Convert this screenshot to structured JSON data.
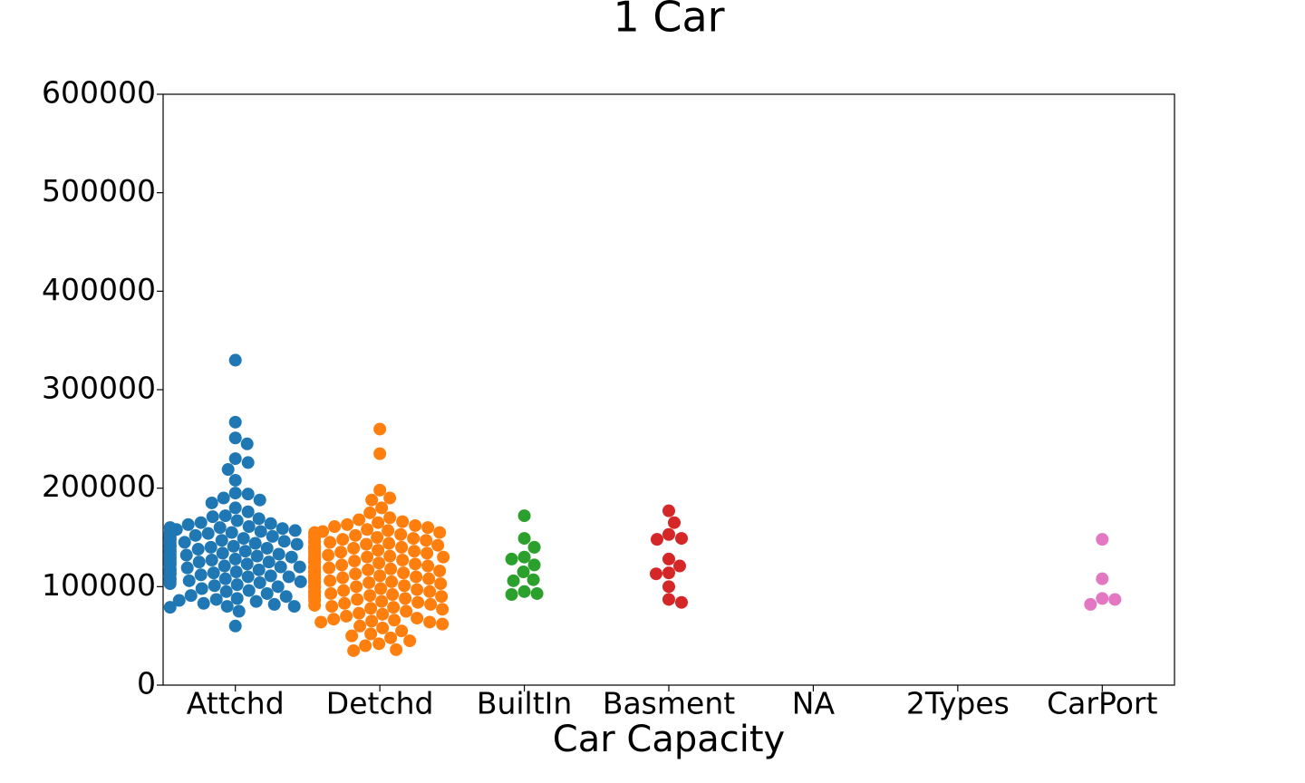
{
  "chart_data": {
    "type": "swarm",
    "title": "1 Car",
    "x_label": "Car Capacity",
    "categories": [
      "Attchd",
      "Detchd",
      "BuiltIn",
      "Basment",
      "NA",
      "2Types",
      "CarPort"
    ],
    "colors": [
      "#1f77b4",
      "#ff7f0e",
      "#2ca02c",
      "#d62728",
      "#9467bd",
      "#8c564b",
      "#e377c2"
    ],
    "values": [
      [
        330000,
        267000,
        251000,
        245000,
        230000,
        226000,
        219000,
        208000,
        195000,
        194000,
        190000,
        188000,
        185000,
        180000,
        176000,
        172000,
        171000,
        169000,
        167000,
        165000,
        164000,
        163000,
        161000,
        160000,
        159000,
        158000,
        157000,
        156000,
        155000,
        154000,
        153000,
        152000,
        151000,
        150000,
        149000,
        148000,
        147000,
        146000,
        145000,
        144000,
        143000,
        142000,
        141000,
        140000,
        140000,
        139000,
        138000,
        137000,
        136000,
        135000,
        135000,
        134000,
        133000,
        132000,
        131000,
        130000,
        130000,
        129000,
        128000,
        127000,
        126000,
        125000,
        125000,
        124000,
        123000,
        122000,
        121000,
        120000,
        120000,
        119000,
        118000,
        117000,
        116000,
        115000,
        115000,
        114000,
        113000,
        112000,
        111000,
        110000,
        110000,
        109000,
        108000,
        107000,
        106000,
        105000,
        105000,
        104000,
        103000,
        102000,
        101000,
        100000,
        98000,
        96000,
        95000,
        93000,
        91000,
        90000,
        88000,
        87000,
        86000,
        85000,
        83000,
        82000,
        80000,
        80000,
        79000,
        75000,
        60000,
        145000,
        138000,
        132000,
        128000,
        122000,
        118000,
        112000,
        108000,
        150000,
        155000,
        160000,
        142000,
        135000,
        127000,
        133000,
        141000,
        147000,
        152000,
        117000,
        124000,
        113000
      ],
      [
        260000,
        235000,
        198000,
        190000,
        188000,
        180000,
        175000,
        170000,
        168000,
        166000,
        165000,
        163000,
        162000,
        161000,
        160000,
        158000,
        157000,
        156000,
        155000,
        154000,
        153000,
        152000,
        151000,
        150000,
        149000,
        148000,
        147000,
        146000,
        145000,
        145000,
        144000,
        143000,
        142000,
        141000,
        140000,
        140000,
        139000,
        138000,
        137000,
        136000,
        135000,
        135000,
        134000,
        133000,
        132000,
        131000,
        130000,
        130000,
        130000,
        129000,
        128000,
        127000,
        126000,
        125000,
        125000,
        125000,
        124000,
        123000,
        122000,
        121000,
        120000,
        120000,
        120000,
        119000,
        118000,
        117000,
        116000,
        115000,
        115000,
        115000,
        114000,
        113000,
        112000,
        111000,
        110000,
        110000,
        110000,
        109000,
        108000,
        107000,
        106000,
        105000,
        105000,
        105000,
        104000,
        103000,
        102000,
        101000,
        100000,
        100000,
        99000,
        98000,
        97000,
        96000,
        95000,
        95000,
        94000,
        93000,
        92000,
        91000,
        90000,
        90000,
        89000,
        88000,
        87000,
        86000,
        85000,
        84000,
        83000,
        82000,
        81000,
        80000,
        79000,
        78000,
        77000,
        75000,
        73000,
        72000,
        70000,
        68000,
        67000,
        66000,
        65000,
        64000,
        64000,
        62000,
        60000,
        58000,
        55000,
        52000,
        50000,
        48000,
        45000,
        42000,
        40000,
        36000,
        35000,
        150000,
        140000,
        130000,
        120000,
        110000,
        100000,
        145000,
        135000,
        125000,
        115000,
        105000,
        95000,
        155000,
        138000,
        128000,
        118000,
        108000,
        92000
      ],
      [
        172000,
        149000,
        140000,
        130000,
        128000,
        122000,
        115000,
        107000,
        106000,
        95000,
        93000,
        92000
      ],
      [
        177000,
        165000,
        153000,
        149000,
        148000,
        128000,
        121000,
        114000,
        113000,
        100000,
        87000,
        84000
      ],
      [],
      [],
      [
        148000,
        108000,
        88000,
        87000,
        82000
      ]
    ],
    "ylim": [
      0,
      600000
    ],
    "yticks": [
      0,
      100000,
      200000,
      300000,
      400000,
      500000,
      600000
    ]
  }
}
